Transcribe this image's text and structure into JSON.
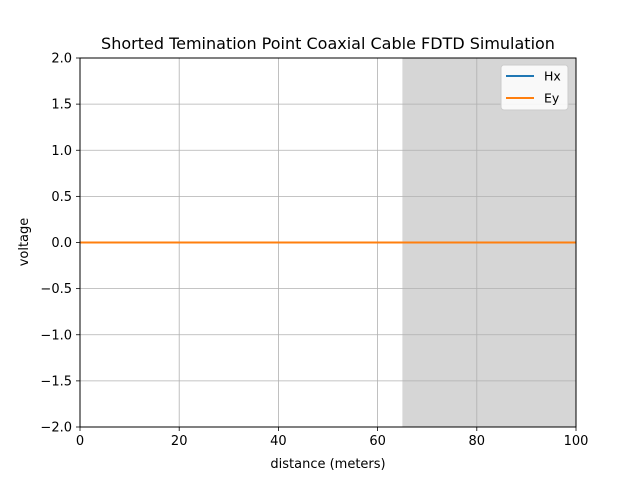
{
  "chart_data": {
    "type": "line",
    "title": "Shorted Temination Point Coaxial Cable FDTD Simulation",
    "xlabel": "distance (meters)",
    "ylabel": "voltage",
    "xlim": [
      0,
      100
    ],
    "ylim": [
      -2.0,
      2.0
    ],
    "x_ticks": [
      0,
      20,
      40,
      60,
      80,
      100
    ],
    "x_tick_labels": [
      "0",
      "20",
      "40",
      "60",
      "80",
      "100"
    ],
    "y_ticks": [
      -2.0,
      -1.5,
      -1.0,
      -0.5,
      0.0,
      0.5,
      1.0,
      1.5,
      2.0
    ],
    "y_tick_labels": [
      "−2.0",
      "−1.5",
      "−1.0",
      "−0.5",
      "0.0",
      "0.5",
      "1.0",
      "1.5",
      "2.0"
    ],
    "grid": true,
    "legend_position": "top-right",
    "shaded_region": {
      "x_start": 65,
      "x_end": 100,
      "color": "#d6d6d6"
    },
    "series": [
      {
        "name": "Hx",
        "color": "#1f77b4",
        "x": [
          0,
          100
        ],
        "y": [
          0,
          0
        ]
      },
      {
        "name": "Ey",
        "color": "#ff7f0e",
        "x": [
          0,
          100
        ],
        "y": [
          0,
          0
        ]
      }
    ]
  }
}
